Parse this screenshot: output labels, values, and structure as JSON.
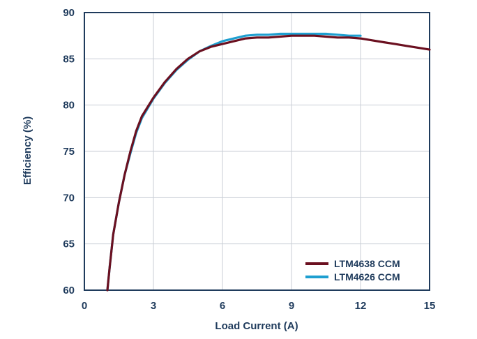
{
  "chart_data": {
    "type": "line",
    "xlabel": "Load Current (A)",
    "ylabel": "Efficiency (%)",
    "xlim": [
      0,
      15
    ],
    "ylim": [
      60,
      90
    ],
    "xticks": [
      0,
      3,
      6,
      9,
      12,
      15
    ],
    "yticks": [
      60,
      65,
      70,
      75,
      80,
      85,
      90
    ],
    "grid": true,
    "legend_position": "bottom-right",
    "series": [
      {
        "name": "LTM4638 CCM",
        "color": "#6b1020",
        "x": [
          1.0,
          1.1,
          1.25,
          1.5,
          1.75,
          2.0,
          2.25,
          2.5,
          3.0,
          3.5,
          4.0,
          4.5,
          5.0,
          5.5,
          6.0,
          6.5,
          7.0,
          7.5,
          8.0,
          8.5,
          9.0,
          9.5,
          10.0,
          10.5,
          11.0,
          11.5,
          12.0,
          12.5,
          13.0,
          13.5,
          14.0,
          14.5,
          15.0
        ],
        "y": [
          60.0,
          62.5,
          66.0,
          69.5,
          72.5,
          75.0,
          77.2,
          78.8,
          80.8,
          82.5,
          83.9,
          85.0,
          85.8,
          86.3,
          86.6,
          86.9,
          87.2,
          87.3,
          87.3,
          87.4,
          87.5,
          87.5,
          87.5,
          87.4,
          87.3,
          87.3,
          87.2,
          87.0,
          86.8,
          86.6,
          86.4,
          86.2,
          86.0
        ]
      },
      {
        "name": "LTM4626 CCM",
        "color": "#1e9fd0",
        "x": [
          1.0,
          1.1,
          1.25,
          1.5,
          1.75,
          2.0,
          2.25,
          2.5,
          3.0,
          3.5,
          4.0,
          4.5,
          5.0,
          5.5,
          6.0,
          6.5,
          7.0,
          7.5,
          8.0,
          8.5,
          9.0,
          9.5,
          10.0,
          10.5,
          11.0,
          11.5,
          12.0
        ],
        "y": [
          60.0,
          62.5,
          66.0,
          69.5,
          72.5,
          74.8,
          77.0,
          78.6,
          80.7,
          82.4,
          83.8,
          84.9,
          85.8,
          86.4,
          86.9,
          87.2,
          87.5,
          87.6,
          87.6,
          87.7,
          87.7,
          87.7,
          87.7,
          87.7,
          87.6,
          87.5,
          87.5
        ]
      }
    ]
  }
}
